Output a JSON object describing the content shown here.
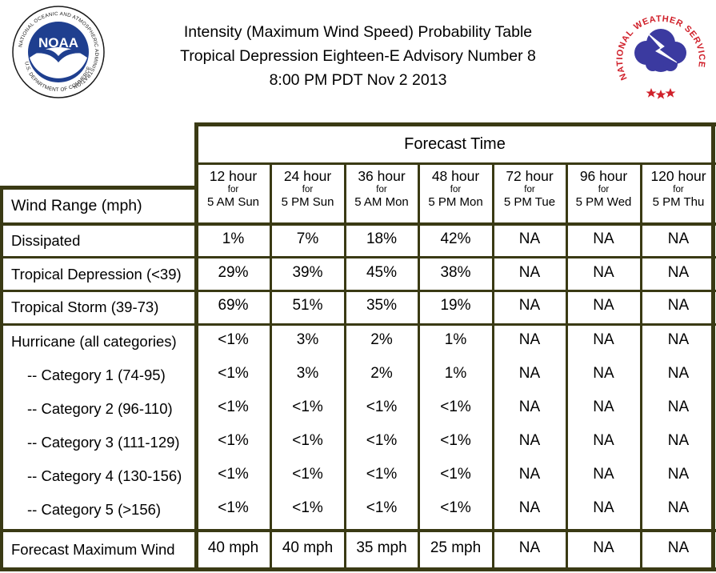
{
  "title": {
    "line1": "Intensity (Maximum Wind Speed) Probability Table",
    "line2": "Tropical Depression Eighteen-E Advisory Number 8",
    "line3": "8:00 PM PDT Nov 2 2013"
  },
  "noaa_logo": {
    "wordmark": "NOAA",
    "ring_text": "NATIONAL OCEANIC AND ATMOSPHERIC ADMINISTRATION",
    "bottom_text": "U.S. DEPARTMENT OF COMMERCE"
  },
  "nws_logo": {
    "ring_text": "NATIONAL WEATHER SERVICE"
  },
  "colors": {
    "border": "#3a3a14",
    "noaa_blue": "#1f3f8f",
    "nws_red": "#d0202a",
    "nws_cloud": "#3b3aa0"
  },
  "table": {
    "forecast_time_label": "Forecast Time",
    "wind_range_label": "Wind Range (mph)",
    "columns": [
      {
        "hours": "12 hour",
        "for": "for",
        "day": "5 AM Sun"
      },
      {
        "hours": "24 hour",
        "for": "for",
        "day": "5 PM Sun"
      },
      {
        "hours": "36 hour",
        "for": "for",
        "day": "5 AM Mon"
      },
      {
        "hours": "48 hour",
        "for": "for",
        "day": "5 PM Mon"
      },
      {
        "hours": "72 hour",
        "for": "for",
        "day": "5 PM Tue"
      },
      {
        "hours": "96 hour",
        "for": "for",
        "day": "5 PM Wed"
      },
      {
        "hours": "120 hour",
        "for": "for",
        "day": "5 PM Thu"
      }
    ],
    "rows": [
      {
        "label": "Dissipated",
        "values": [
          "1%",
          "7%",
          "18%",
          "42%",
          "NA",
          "NA",
          "NA"
        ]
      },
      {
        "label": "Tropical Depression (<39)",
        "values": [
          "29%",
          "39%",
          "45%",
          "38%",
          "NA",
          "NA",
          "NA"
        ]
      },
      {
        "label": "Tropical Storm (39-73)",
        "values": [
          "69%",
          "51%",
          "35%",
          "19%",
          "NA",
          "NA",
          "NA"
        ]
      },
      {
        "label": "Hurricane (all categories)",
        "values": [
          "<1%",
          "3%",
          "2%",
          "1%",
          "NA",
          "NA",
          "NA"
        ]
      },
      {
        "label": "-- Category 1 (74-95)",
        "values": [
          "<1%",
          "3%",
          "2%",
          "1%",
          "NA",
          "NA",
          "NA"
        ]
      },
      {
        "label": "-- Category 2 (96-110)",
        "values": [
          "<1%",
          "<1%",
          "<1%",
          "<1%",
          "NA",
          "NA",
          "NA"
        ]
      },
      {
        "label": "-- Category 3 (111-129)",
        "values": [
          "<1%",
          "<1%",
          "<1%",
          "<1%",
          "NA",
          "NA",
          "NA"
        ]
      },
      {
        "label": "-- Category 4 (130-156)",
        "values": [
          "<1%",
          "<1%",
          "<1%",
          "<1%",
          "NA",
          "NA",
          "NA"
        ]
      },
      {
        "label": "-- Category 5 (>156)",
        "values": [
          "<1%",
          "<1%",
          "<1%",
          "<1%",
          "NA",
          "NA",
          "NA"
        ]
      },
      {
        "label": "Forecast Maximum Wind",
        "values": [
          "40 mph",
          "40 mph",
          "35 mph",
          "25 mph",
          "NA",
          "NA",
          "NA"
        ]
      }
    ]
  }
}
